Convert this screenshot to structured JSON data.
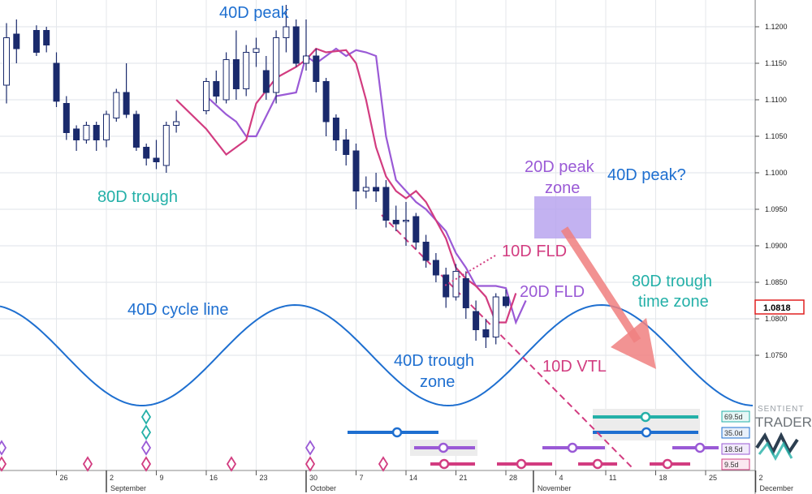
{
  "chart_data": {
    "type": "candlestick",
    "ylim": [
      1.069,
      1.124
    ],
    "price_ticks": [
      "1.1200",
      "1.1150",
      "1.1100",
      "1.1050",
      "1.1000",
      "1.0950",
      "1.0900",
      "1.0850",
      "1.0800",
      "1.0750"
    ],
    "current_price": "1.0818",
    "x_day_ticks": [
      "26",
      "2",
      "9",
      "16",
      "23",
      "30",
      "7",
      "14",
      "21",
      "28",
      "4",
      "11",
      "18",
      "25",
      "2"
    ],
    "month_labels": [
      "September",
      "October",
      "November",
      "December"
    ],
    "candles": [
      {
        "d": "Aug 20",
        "o": 1.112,
        "h": 1.1205,
        "l": 1.1095,
        "c": 1.1185
      },
      {
        "d": "Aug 21",
        "o": 1.119,
        "h": 1.121,
        "l": 1.115,
        "c": 1.117
      },
      {
        "d": "Aug 23",
        "o": 1.1195,
        "h": 1.1202,
        "l": 1.116,
        "c": 1.1165
      },
      {
        "d": "Aug 24",
        "o": 1.1195,
        "h": 1.12,
        "l": 1.1165,
        "c": 1.1175
      },
      {
        "d": "Aug 27",
        "o": 1.115,
        "h": 1.1165,
        "l": 1.109,
        "c": 1.1098
      },
      {
        "d": "Aug 28",
        "o": 1.1095,
        "h": 1.1105,
        "l": 1.1045,
        "c": 1.1055
      },
      {
        "d": "Aug 29",
        "o": 1.106,
        "h": 1.1065,
        "l": 1.103,
        "c": 1.1045
      },
      {
        "d": "Aug 30",
        "o": 1.1045,
        "h": 1.107,
        "l": 1.104,
        "c": 1.1065
      },
      {
        "d": "Aug 31",
        "o": 1.1065,
        "h": 1.107,
        "l": 1.103,
        "c": 1.1045
      },
      {
        "d": "Sep 03",
        "o": 1.1045,
        "h": 1.1085,
        "l": 1.1035,
        "c": 1.108
      },
      {
        "d": "Sep 04",
        "o": 1.1075,
        "h": 1.1115,
        "l": 1.107,
        "c": 1.111
      },
      {
        "d": "Sep 05",
        "o": 1.111,
        "h": 1.115,
        "l": 1.1075,
        "c": 1.108
      },
      {
        "d": "Sep 06",
        "o": 1.108,
        "h": 1.1085,
        "l": 1.103,
        "c": 1.1035
      },
      {
        "d": "Sep 07",
        "o": 1.1035,
        "h": 1.104,
        "l": 1.101,
        "c": 1.102
      },
      {
        "d": "Sep 10",
        "o": 1.102,
        "h": 1.1045,
        "l": 1.1005,
        "c": 1.1015
      },
      {
        "d": "Sep 11",
        "o": 1.101,
        "h": 1.107,
        "l": 1.1,
        "c": 1.1065
      },
      {
        "d": "Sep 12",
        "o": 1.1065,
        "h": 1.1085,
        "l": 1.1055,
        "c": 1.107
      },
      {
        "d": "Sep 17",
        "o": 1.1085,
        "h": 1.113,
        "l": 1.108,
        "c": 1.1125
      },
      {
        "d": "Sep 18",
        "o": 1.1125,
        "h": 1.114,
        "l": 1.1095,
        "c": 1.1105
      },
      {
        "d": "Sep 19",
        "o": 1.11,
        "h": 1.1165,
        "l": 1.1095,
        "c": 1.1155
      },
      {
        "d": "Sep 20",
        "o": 1.1155,
        "h": 1.1195,
        "l": 1.11,
        "c": 1.1115
      },
      {
        "d": "Sep 21",
        "o": 1.1115,
        "h": 1.1175,
        "l": 1.1105,
        "c": 1.1165
      },
      {
        "d": "Sep 24",
        "o": 1.1165,
        "h": 1.1185,
        "l": 1.1145,
        "c": 1.117
      },
      {
        "d": "Sep 25",
        "o": 1.114,
        "h": 1.116,
        "l": 1.11,
        "c": 1.111
      },
      {
        "d": "Sep 26",
        "o": 1.111,
        "h": 1.1195,
        "l": 1.1095,
        "c": 1.1185
      },
      {
        "d": "Sep 27",
        "o": 1.1185,
        "h": 1.123,
        "l": 1.1165,
        "c": 1.12
      },
      {
        "d": "Sep 28",
        "o": 1.12,
        "h": 1.121,
        "l": 1.1145,
        "c": 1.115
      },
      {
        "d": "Oct 01",
        "o": 1.115,
        "h": 1.121,
        "l": 1.114,
        "c": 1.116
      },
      {
        "d": "Oct 02",
        "o": 1.116,
        "h": 1.117,
        "l": 1.111,
        "c": 1.1125
      },
      {
        "d": "Oct 03",
        "o": 1.1125,
        "h": 1.113,
        "l": 1.105,
        "c": 1.107
      },
      {
        "d": "Oct 04",
        "o": 1.1075,
        "h": 1.108,
        "l": 1.103,
        "c": 1.1045
      },
      {
        "d": "Oct 05",
        "o": 1.1045,
        "h": 1.106,
        "l": 1.101,
        "c": 1.1025
      },
      {
        "d": "Oct 08",
        "o": 1.103,
        "h": 1.104,
        "l": 1.095,
        "c": 1.0975
      },
      {
        "d": "Oct 09",
        "o": 1.0975,
        "h": 1.0995,
        "l": 1.0965,
        "c": 1.098
      },
      {
        "d": "Oct 10",
        "o": 1.098,
        "h": 1.1,
        "l": 1.096,
        "c": 1.0975
      },
      {
        "d": "Oct 11",
        "o": 1.098,
        "h": 1.099,
        "l": 1.0925,
        "c": 1.0935
      },
      {
        "d": "Oct 12",
        "o": 1.0935,
        "h": 1.0955,
        "l": 1.092,
        "c": 1.093
      },
      {
        "d": "Oct 15",
        "o": 1.0935,
        "h": 1.096,
        "l": 1.09,
        "c": 1.0935
      },
      {
        "d": "Oct 16",
        "o": 1.094,
        "h": 1.0945,
        "l": 1.0895,
        "c": 1.0905
      },
      {
        "d": "Oct 17",
        "o": 1.0905,
        "h": 1.0915,
        "l": 1.087,
        "c": 1.088
      },
      {
        "d": "Oct 18",
        "o": 1.088,
        "h": 1.089,
        "l": 1.085,
        "c": 1.086
      },
      {
        "d": "Oct 19",
        "o": 1.086,
        "h": 1.087,
        "l": 1.0815,
        "c": 1.083
      },
      {
        "d": "Oct 22",
        "o": 1.083,
        "h": 1.0875,
        "l": 1.0825,
        "c": 1.0865
      },
      {
        "d": "Oct 23",
        "o": 1.0855,
        "h": 1.0865,
        "l": 1.08,
        "c": 1.0815
      },
      {
        "d": "Oct 24",
        "o": 1.081,
        "h": 1.0825,
        "l": 1.077,
        "c": 1.0785
      },
      {
        "d": "Oct 25",
        "o": 1.0785,
        "h": 1.08,
        "l": 1.076,
        "c": 1.0775
      },
      {
        "d": "Oct 26",
        "o": 1.0775,
        "h": 1.0835,
        "l": 1.0765,
        "c": 1.083
      },
      {
        "d": "Oct 29",
        "o": 1.083,
        "h": 1.084,
        "l": 1.0815,
        "c": 1.0818
      }
    ],
    "series": [
      {
        "name": "10D FLD",
        "values": [
          [
            "Sep 12",
            1.11
          ],
          [
            "Sep 17",
            1.106
          ],
          [
            "Sep 19",
            1.1025
          ],
          [
            "Sep 21",
            1.1045
          ],
          [
            "Sep 24",
            1.1095
          ],
          [
            "Sep 26",
            1.113
          ],
          [
            "Sep 28",
            1.1145
          ],
          [
            "Oct 01",
            1.1155
          ],
          [
            "Oct 02",
            1.117
          ],
          [
            "Oct 03",
            1.1165
          ],
          [
            "Oct 05",
            1.1168
          ],
          [
            "Oct 08",
            1.115
          ],
          [
            "Oct 09",
            1.11
          ],
          [
            "Oct 10",
            1.1035
          ],
          [
            "Oct 11",
            1.0995
          ],
          [
            "Oct 12",
            1.0975
          ],
          [
            "Oct 15",
            1.0965
          ],
          [
            "Oct 16",
            1.0975
          ],
          [
            "Oct 17",
            1.096
          ],
          [
            "Oct 18",
            1.0935
          ],
          [
            "Oct 19",
            1.091
          ],
          [
            "Oct 22",
            1.087
          ],
          [
            "Oct 23",
            1.0855
          ],
          [
            "Oct 24",
            1.0845
          ],
          [
            "Oct 25",
            1.083
          ],
          [
            "Oct 26",
            1.0795
          ],
          [
            "Oct 29",
            1.0795
          ],
          [
            "Oct 30",
            1.0835
          ]
        ]
      },
      {
        "name": "20D FLD",
        "values": [
          [
            "Sep 17",
            1.1105
          ],
          [
            "Sep 19",
            1.108
          ],
          [
            "Sep 20",
            1.107
          ],
          [
            "Sep 21",
            1.105
          ],
          [
            "Sep 24",
            1.105
          ],
          [
            "Sep 26",
            1.1105
          ],
          [
            "Sep 28",
            1.111
          ],
          [
            "Oct 01",
            1.116
          ],
          [
            "Oct 02",
            1.115
          ],
          [
            "Oct 03",
            1.116
          ],
          [
            "Oct 04",
            1.117
          ],
          [
            "Oct 05",
            1.116
          ],
          [
            "Oct 08",
            1.1168
          ],
          [
            "Oct 09",
            1.1165
          ],
          [
            "Oct 10",
            1.116
          ],
          [
            "Oct 11",
            1.105
          ],
          [
            "Oct 12",
            1.099
          ],
          [
            "Oct 15",
            1.0975
          ],
          [
            "Oct 16",
            1.096
          ],
          [
            "Oct 17",
            1.095
          ],
          [
            "Oct 18",
            1.0935
          ],
          [
            "Oct 19",
            1.092
          ],
          [
            "Oct 22",
            1.089
          ],
          [
            "Oct 23",
            1.087
          ],
          [
            "Oct 24",
            1.0845
          ],
          [
            "Oct 25",
            1.0845
          ],
          [
            "Oct 26",
            1.0845
          ],
          [
            "Oct 29",
            1.0842
          ],
          [
            "Oct 30",
            1.0795
          ],
          [
            "Oct 31",
            1.0825
          ]
        ]
      }
    ]
  },
  "annotations": {
    "peak_40d": "40D peak",
    "trough_80d": "80D trough",
    "peak_zone_20d": [
      "20D peak",
      "zone"
    ],
    "peak_40d_q": "40D peak?",
    "fld_10d": "10D FLD",
    "fld_20d": "20D FLD",
    "trough_zone_80d": [
      "80D trough",
      "time zone"
    ],
    "cycle_line_40d": "40D cycle line",
    "trough_zone_40d": [
      "40D trough",
      "zone"
    ],
    "vtl_10d": "10D VTL"
  },
  "cycle_labels": [
    "69.5d",
    "35.0d",
    "18.5d",
    "9.5d"
  ],
  "logo": {
    "line1": "SENTIENT",
    "line2": "TRADER"
  },
  "colors": {
    "candle_bull": "#ffffff",
    "candle_bear": "#1a2a6c",
    "fld10": "#d23c80",
    "fld20": "#9a5ad6",
    "cycle_line": "#1e6fd0",
    "teal": "#24b0a8",
    "purple": "#9a5ad6",
    "magenta": "#d23c80",
    "blue": "#1e6fd0",
    "arrow": "#f08080",
    "zone": "#b9a4ee"
  }
}
